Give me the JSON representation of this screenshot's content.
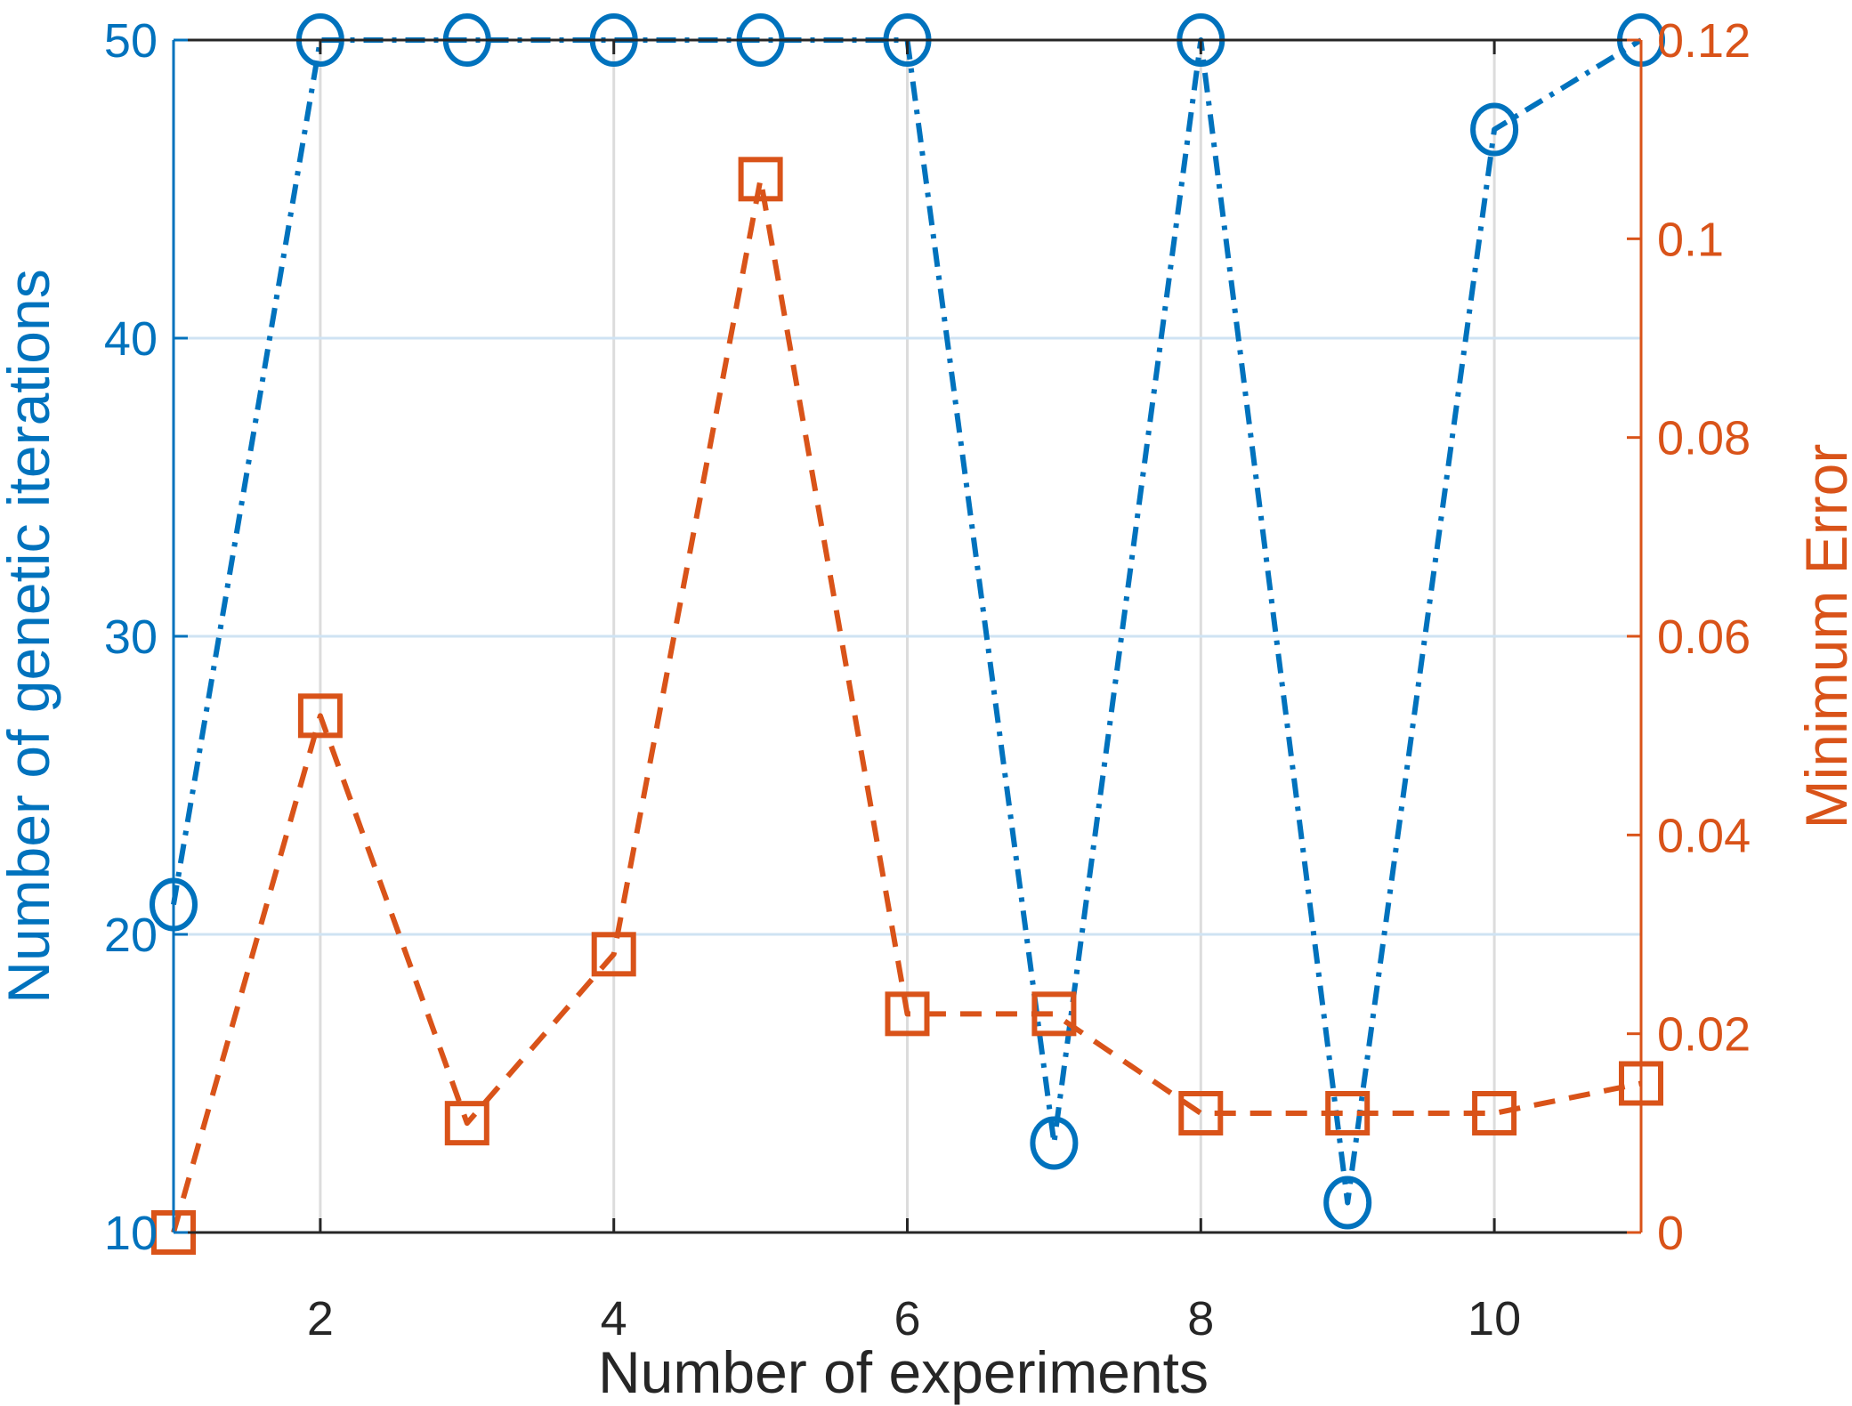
{
  "chart_data": {
    "type": "line",
    "title": "",
    "xlabel": "Number of experiments",
    "ylabel_left": "Number of genetic iterations",
    "ylabel_right": "Minimum Error",
    "xlim": [
      1,
      11
    ],
    "ylim_left": [
      10,
      50
    ],
    "ylim_right": [
      0,
      0.12
    ],
    "x_ticks": [
      2,
      4,
      6,
      8,
      10
    ],
    "x_tick_labels": [
      "2",
      "4",
      "6",
      "8",
      "10"
    ],
    "y_left_ticks": [
      10,
      20,
      30,
      40,
      50
    ],
    "y_left_tick_labels": [
      "10",
      "20",
      "30",
      "40",
      "50"
    ],
    "y_right_ticks": [
      0,
      0.02,
      0.04,
      0.06,
      0.08,
      0.1,
      0.12
    ],
    "y_right_tick_labels": [
      "0",
      "0.02",
      "0.04",
      "0.06",
      "0.08",
      "0.1",
      "0.12"
    ],
    "grid": true,
    "x": [
      1,
      2,
      3,
      4,
      5,
      6,
      7,
      8,
      9,
      10,
      11
    ],
    "series": [
      {
        "name": "Number of genetic iterations",
        "axis": "left",
        "color": "#0072BD",
        "line_style": "dash-dot",
        "marker": "circle",
        "values": [
          21,
          50,
          50,
          50,
          50,
          50,
          13,
          50,
          11,
          47,
          50
        ]
      },
      {
        "name": "Minimum Error",
        "axis": "right",
        "color": "#D95319",
        "line_style": "dashed",
        "marker": "square",
        "values": [
          0,
          0.052,
          0.011,
          0.028,
          0.106,
          0.022,
          0.022,
          0.012,
          0.012,
          0.012,
          0.015
        ]
      }
    ]
  }
}
